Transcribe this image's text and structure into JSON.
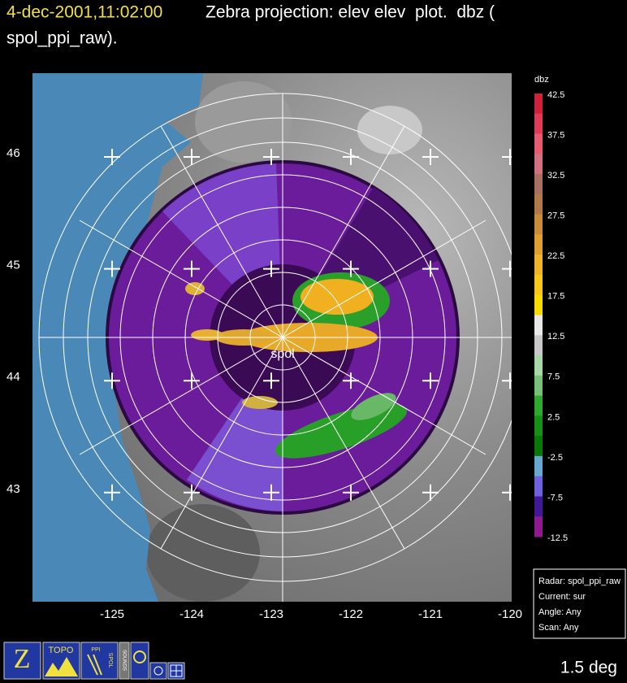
{
  "header": {
    "time": "4-dec-2001,11:02:00",
    "title_line1": "Zebra projection: elev elev  plot.  dbz (",
    "title_line2": "spol_ppi_raw)."
  },
  "map": {
    "site_label": "spol",
    "lat_ticks": [
      46,
      45,
      44,
      43
    ],
    "lon_ticks": [
      -125,
      -124,
      -123,
      -122,
      -121,
      -120
    ]
  },
  "colorbar": {
    "unit": "dbz",
    "labels": [
      42.5,
      37.5,
      32.5,
      27.5,
      22.5,
      17.5,
      12.5,
      7.5,
      2.5,
      -2.5,
      -7.5,
      -12.5
    ],
    "colors": [
      "#d0203c",
      "#e03a58",
      "#e85a70",
      "#d07080",
      "#a87060",
      "#b07a48",
      "#c88c38",
      "#e0a030",
      "#f0b428",
      "#f8c818",
      "#f8dc00",
      "#e8e8e8",
      "#c8c8c8",
      "#a8d8a8",
      "#78c078",
      "#30a830",
      "#189018",
      "#087808",
      "#68a8d0",
      "#7060e0",
      "#401898",
      "#901890"
    ]
  },
  "info_box": {
    "lines": [
      "Radar: spol_ppi_raw",
      "Current: sur",
      "Angle: Any",
      "Scan: Any"
    ]
  },
  "status": {
    "elevation": "1.5 deg"
  },
  "icons": {
    "topo": "TOPO",
    "ppi": "PPI",
    "spol": "SPOL",
    "sounds": "SOUNDS"
  }
}
